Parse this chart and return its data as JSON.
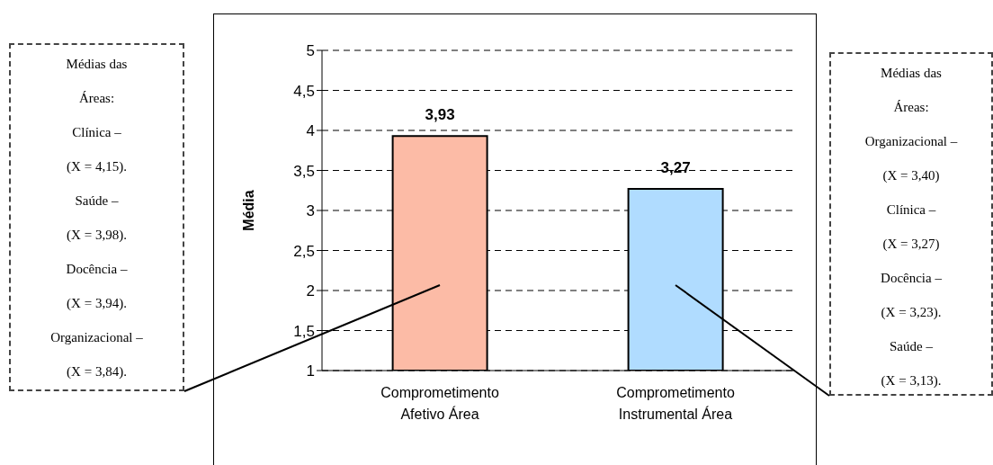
{
  "chart_data": {
    "type": "bar",
    "ylabel": "Média",
    "categories": [
      "Comprometimento Afetivo Área",
      "Comprometimento Instrumental Área"
    ],
    "values": [
      3.93,
      3.27
    ],
    "value_labels": [
      "3,93",
      "3,27"
    ],
    "colors": [
      "#fcbba6",
      "#b0dcff"
    ],
    "ylim": [
      1,
      5
    ],
    "yticks": [
      1,
      {
        "value": 1.5,
        "label": "1,5"
      },
      2,
      {
        "value": 2.5,
        "label": "2,5"
      },
      3,
      {
        "value": 3.5,
        "label": "3,5"
      },
      4,
      {
        "value": 4.5,
        "label": "4,5"
      },
      5
    ],
    "grid": "y",
    "legend": false,
    "annotations": [
      "Médias das\nÁreas:\nClínica –\n(X = 4,15).\nSaúde –\n(X = 3,98).\nDocência –\n(X = 3,94).\nOrganizacional –\n(X = 3,84).",
      "Médias das\nÁreas:\nOrganizacional –\n(X = 3,40)\nClínica –\n(X = 3,27)\nDocência –\n(X = 3,23).\nSaúde –\n(X = 3,13)."
    ]
  }
}
